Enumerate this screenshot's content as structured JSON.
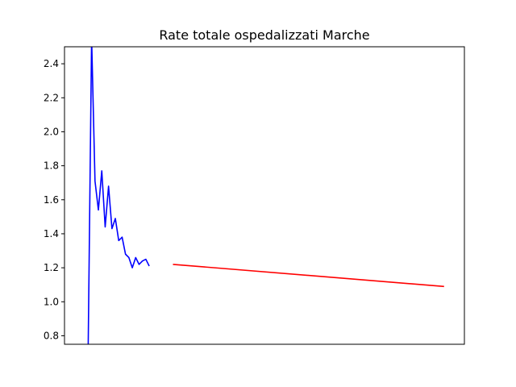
{
  "chart_data": {
    "type": "line",
    "title": "Rate totale ospedalizzati Marche",
    "xlabel": "",
    "ylabel": "",
    "ylim": [
      0.75,
      2.5
    ],
    "xlim": [
      -7,
      111
    ],
    "yticks": [
      "0.8",
      "1.0",
      "1.2",
      "1.4",
      "1.6",
      "1.8",
      "2.0",
      "2.2",
      "2.4"
    ],
    "xticks": [],
    "grid": false,
    "series": [
      {
        "color": "#0000ff",
        "x": [
          0,
          1,
          2,
          3,
          4,
          5,
          6,
          7,
          8,
          9,
          10,
          11,
          12,
          13,
          14,
          15,
          16,
          17,
          18,
          19,
          20,
          21,
          22,
          23
        ],
        "y": [
          0.75,
          2.55,
          1.71,
          1.54,
          1.77,
          1.44,
          1.68,
          1.43,
          1.49,
          1.36,
          1.38,
          1.28,
          1.26,
          1.2,
          1.26,
          1.22,
          1.24,
          1.25,
          1.21,
          null,
          null,
          null,
          null,
          null
        ]
      },
      {
        "color": "#ff0000",
        "x": [
          25,
          105
        ],
        "y": [
          1.22,
          1.09
        ]
      }
    ]
  }
}
